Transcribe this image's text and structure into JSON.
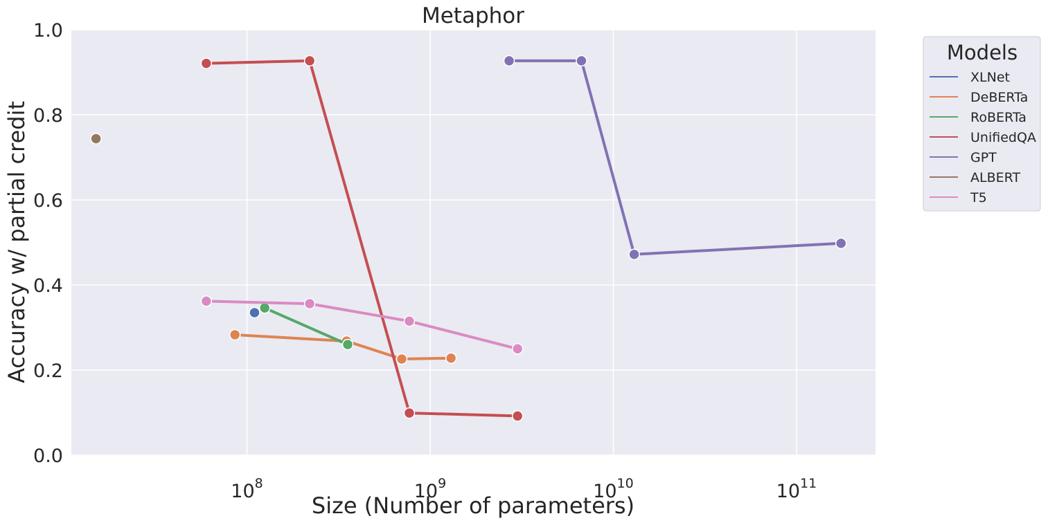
{
  "chart_data": {
    "type": "line",
    "title": "Metaphor",
    "xlabel": "Size (Number of parameters)",
    "ylabel": "Accuracy w/ partial credit",
    "x_scale": "log",
    "xlim": [
      11000000,
      270000000000
    ],
    "ylim": [
      0,
      1
    ],
    "grid": true,
    "x_ticks": [
      {
        "value": 100000000,
        "base": "10",
        "exp": "8"
      },
      {
        "value": 1000000000,
        "base": "10",
        "exp": "9"
      },
      {
        "value": 10000000000,
        "base": "10",
        "exp": "10"
      },
      {
        "value": 100000000000,
        "base": "10",
        "exp": "11"
      }
    ],
    "y_ticks": [
      {
        "value": 0.0,
        "label": "0.0"
      },
      {
        "value": 0.2,
        "label": "0.2"
      },
      {
        "value": 0.4,
        "label": "0.4"
      },
      {
        "value": 0.6,
        "label": "0.6"
      },
      {
        "value": 0.8,
        "label": "0.8"
      },
      {
        "value": 1.0,
        "label": "1.0"
      }
    ],
    "legend": {
      "title": "Models",
      "position": "outside-right"
    },
    "series": [
      {
        "name": "XLNet",
        "color": "#4c72b0",
        "points": [
          [
            110000000,
            0.335
          ]
        ]
      },
      {
        "name": "DeBERTa",
        "color": "#dd8452",
        "points": [
          [
            86000000,
            0.283
          ],
          [
            350000000,
            0.268
          ],
          [
            700000000,
            0.226
          ],
          [
            1300000000,
            0.228
          ]
        ]
      },
      {
        "name": "RoBERTa",
        "color": "#55a868",
        "points": [
          [
            125000000,
            0.346
          ],
          [
            355000000,
            0.26
          ]
        ]
      },
      {
        "name": "UnifiedQA",
        "color": "#c44e52",
        "points": [
          [
            60000000,
            0.921
          ],
          [
            220000000,
            0.927
          ],
          [
            770000000,
            0.099
          ],
          [
            3000000000,
            0.092
          ]
        ]
      },
      {
        "name": "GPT",
        "color": "#8172b3",
        "points": [
          [
            2700000000,
            0.927
          ],
          [
            6700000000,
            0.927
          ],
          [
            13000000000,
            0.472
          ],
          [
            175000000000,
            0.498
          ]
        ]
      },
      {
        "name": "ALBERT",
        "color": "#937860",
        "points": [
          [
            15000000,
            0.744
          ]
        ]
      },
      {
        "name": "T5",
        "color": "#da8bc3",
        "points": [
          [
            60000000,
            0.362
          ],
          [
            220000000,
            0.356
          ],
          [
            770000000,
            0.315
          ],
          [
            3000000000,
            0.25
          ]
        ]
      }
    ]
  }
}
